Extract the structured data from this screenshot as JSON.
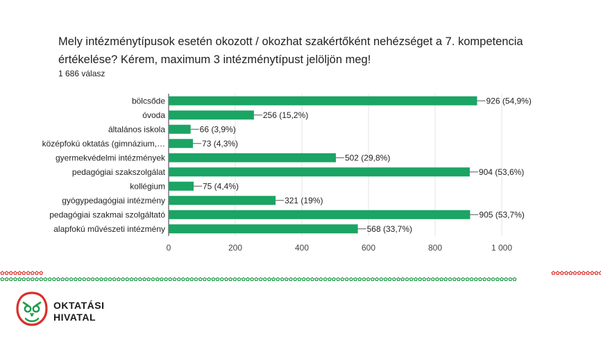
{
  "header": {
    "question": "Mely intézménytípusok esetén okozott / okozhat szakértőként nehézséget a 7. kompetencia értékelése? Kérem, maximum 3 intézménytípust jelöljön meg!",
    "responses": "1 686 válasz"
  },
  "chart_data": {
    "type": "bar",
    "orientation": "horizontal",
    "categories": [
      "bölcsőde",
      "óvoda",
      "általános iskola",
      "középfokú oktatás (gimnázium,…",
      "gyermekvédelmi intézmények",
      "pedagógiai szakszolgálat",
      "kollégium",
      "gyógypedagógiai intézmény",
      "pedagógiai szakmai szolgáltató",
      "alapfokú művészeti intézmény"
    ],
    "values": [
      926,
      256,
      66,
      73,
      502,
      904,
      75,
      321,
      905,
      568
    ],
    "data_labels": [
      "926 (54,9%)",
      "256 (15,2%)",
      "66 (3,9%)",
      "73 (4,3%)",
      "502 (29,8%)",
      "904 (53,6%)",
      "75 (4,4%)",
      "321 (19%)",
      "905 (53,7%)",
      "568 (33,7%)"
    ],
    "xlim": [
      0,
      1000
    ],
    "x_ticks": [
      0,
      200,
      400,
      600,
      800,
      1000
    ],
    "x_tick_labels": [
      "0",
      "200",
      "400",
      "600",
      "800",
      "1 000"
    ],
    "bar_color": "#1ba463",
    "grid": "vertical",
    "legend": "none"
  },
  "footer": {
    "logo_line1": "OKTATÁSI",
    "logo_line2": "HIVATAL",
    "logo_color": "#d9302b",
    "border_green": "#1e9a4a",
    "border_red": "#d9302b",
    "border_icon": "tulip-ornament-icon"
  }
}
